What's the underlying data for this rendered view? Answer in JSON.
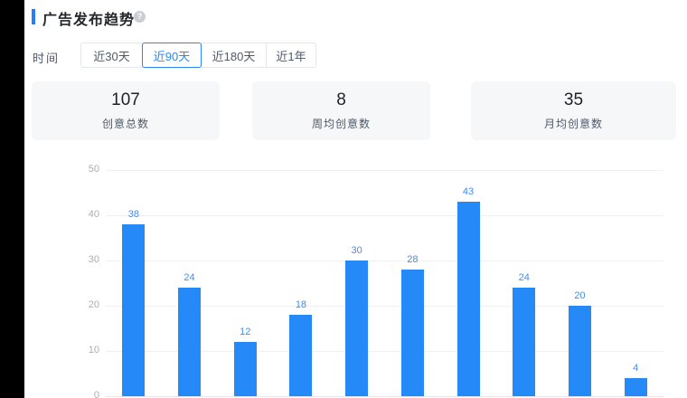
{
  "header": {
    "title": "广告发布趋势",
    "help_icon": "?"
  },
  "filters": {
    "label": "时间",
    "options": [
      {
        "label": "近30天",
        "selected": false
      },
      {
        "label": "近90天",
        "selected": true
      },
      {
        "label": "近180天",
        "selected": false
      },
      {
        "label": "近1年",
        "selected": false
      }
    ]
  },
  "stats": [
    {
      "value": "107",
      "label": "创意总数"
    },
    {
      "value": "8",
      "label": "周均创意数"
    },
    {
      "value": "35",
      "label": "月均创意数"
    }
  ],
  "chart_data": {
    "type": "bar",
    "title": "广告发布趋势",
    "values": [
      38,
      24,
      12,
      18,
      30,
      28,
      43,
      24,
      20,
      4
    ],
    "y_ticks": [
      0,
      10,
      20,
      30,
      40,
      50
    ],
    "ylim": [
      0,
      50
    ],
    "grid": true,
    "legend": false,
    "x_tick_labels_visible": false,
    "value_labels_shown": true
  },
  "colors": {
    "accent": "#2b7cf8",
    "bar": "#2589f7",
    "bar_value_label": "#3f8ef7",
    "selected_filter": "#2b86f6",
    "card_bg": "#f6f7f9",
    "text_dark": "#1d2129",
    "text_gray": "#4e5969",
    "axis_label_gray": "#a9aeb8",
    "grid_line": "#f0f1f3",
    "button_border": "#e5e6eb"
  }
}
